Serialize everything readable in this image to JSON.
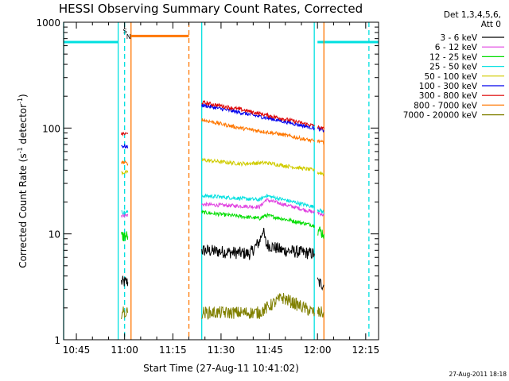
{
  "chart_data": {
    "type": "line",
    "title": "HESSI Observing Summary Count Rates, Corrected",
    "xlabel": "Start Time (27-Aug-11 10:41:02)",
    "ylabel": "Corrected Count Rate (s",
    "ylabel_sup": "-1",
    "ylabel_mid": " detector",
    "ylabel_end": ")",
    "stamp": "27-Aug-2011 18:18",
    "legend_header": [
      "Det 1,3,4,5,6,",
      "Att 0"
    ],
    "legend_position": "top-right",
    "y_scale": "log",
    "ylim": [
      1,
      1000
    ],
    "xlim": [
      "10:41:02",
      "12:19:00"
    ],
    "x_tick_labels": [
      "10:45",
      "11:00",
      "11:15",
      "11:30",
      "11:45",
      "12:00",
      "12:15"
    ],
    "y_tick_labels": [
      "1",
      "10",
      "100",
      "1000"
    ],
    "grid": false,
    "markers": [
      {
        "label": "S",
        "color": "#f5a623"
      },
      {
        "label": "N",
        "color": "#00e0e0"
      }
    ],
    "series": [
      {
        "name": "3 - 6 keV",
        "color": "#000000",
        "segments": [
          {
            "x": [
              "10:59",
              "11:01"
            ],
            "y": [
              3.5,
              3.5
            ]
          },
          {
            "x": [
              "11:24",
              "11:39",
              "11:42",
              "11:43",
              "11:44",
              "11:49",
              "11:59"
            ],
            "y": [
              7.0,
              6.5,
              8.5,
              11.0,
              8.0,
              7.0,
              6.5
            ]
          },
          {
            "x": [
              "12:00",
              "12:02"
            ],
            "y": [
              3.5,
              3.3
            ]
          }
        ]
      },
      {
        "name": "6 - 12 keV",
        "color": "#e040e0",
        "segments": [
          {
            "x": [
              "10:59",
              "11:01"
            ],
            "y": [
              15,
              15
            ]
          },
          {
            "x": [
              "11:24",
              "11:42",
              "11:44",
              "11:59"
            ],
            "y": [
              19,
              18,
              21,
              16
            ]
          },
          {
            "x": [
              "12:00",
              "12:02"
            ],
            "y": [
              16,
              15
            ]
          }
        ]
      },
      {
        "name": "12 - 25 keV",
        "color": "#00dd00",
        "segments": [
          {
            "x": [
              "10:59",
              "11:01"
            ],
            "y": [
              9.5,
              9.5
            ]
          },
          {
            "x": [
              "11:24",
              "11:42",
              "11:44",
              "11:59"
            ],
            "y": [
              16,
              14,
              15,
              12
            ]
          },
          {
            "x": [
              "12:00",
              "12:02"
            ],
            "y": [
              11,
              10
            ]
          }
        ]
      },
      {
        "name": "25 - 50 keV",
        "color": "#00e0e0",
        "segments": [
          {
            "x": [
              "10:59",
              "11:01"
            ],
            "y": [
              16,
              16
            ]
          },
          {
            "x": [
              "11:24",
              "11:42",
              "11:44",
              "11:59"
            ],
            "y": [
              23,
              21,
              23,
              18
            ]
          },
          {
            "x": [
              "12:00",
              "12:02"
            ],
            "y": [
              17,
              16
            ]
          }
        ]
      },
      {
        "name": "50 - 100 keV",
        "color": "#d0cc00",
        "segments": [
          {
            "x": [
              "10:59",
              "11:01"
            ],
            "y": [
              38,
              38
            ]
          },
          {
            "x": [
              "11:24",
              "11:36",
              "11:44",
              "11:50",
              "11:59"
            ],
            "y": [
              50,
              46,
              47,
              44,
              40
            ]
          },
          {
            "x": [
              "12:00",
              "12:02"
            ],
            "y": [
              38,
              37
            ]
          }
        ]
      },
      {
        "name": "100 - 300 keV",
        "color": "#0000ee",
        "segments": [
          {
            "x": [
              "10:59",
              "11:01"
            ],
            "y": [
              68,
              66
            ]
          },
          {
            "x": [
              "11:24",
              "11:36",
              "11:48",
              "11:59"
            ],
            "y": [
              165,
              140,
              118,
              100
            ]
          },
          {
            "x": [
              "12:00",
              "12:02"
            ],
            "y": [
              98,
              95
            ]
          }
        ]
      },
      {
        "name": "300 - 800 keV",
        "color": "#dd0000",
        "segments": [
          {
            "x": [
              "10:59",
              "11:01"
            ],
            "y": [
              88,
              88
            ]
          },
          {
            "x": [
              "11:24",
              "11:36",
              "11:48",
              "11:59"
            ],
            "y": [
              175,
              150,
              125,
              105
            ]
          },
          {
            "x": [
              "12:00",
              "12:02"
            ],
            "y": [
              102,
              98
            ]
          }
        ]
      },
      {
        "name": "800 - 7000 keV",
        "color": "#ff7700",
        "segments": [
          {
            "x": [
              "10:59",
              "11:01"
            ],
            "y": [
              48,
              46
            ]
          },
          {
            "x": [
              "11:24",
              "11:36",
              "11:48",
              "11:59"
            ],
            "y": [
              120,
              100,
              88,
              75
            ]
          },
          {
            "x": [
              "12:00",
              "12:02"
            ],
            "y": [
              76,
              72
            ]
          }
        ]
      },
      {
        "name": "7000 - 20000 keV",
        "color": "#808000",
        "segments": [
          {
            "x": [
              "10:59",
              "11:01"
            ],
            "y": [
              1.8,
              1.8
            ]
          },
          {
            "x": [
              "11:24",
              "11:42",
              "11:49",
              "11:59"
            ],
            "y": [
              1.8,
              1.8,
              2.5,
              1.8
            ]
          },
          {
            "x": [
              "12:00",
              "12:02"
            ],
            "y": [
              1.8,
              1.8
            ]
          }
        ]
      }
    ],
    "status_bands": [
      {
        "color": "#00e0e0",
        "segments": [
          {
            "x": [
              "10:41:02",
              "10:58"
            ],
            "y": 650
          },
          {
            "x": [
              "12:00",
              "12:19"
            ],
            "y": 650
          }
        ]
      },
      {
        "color": "#ff7700",
        "segments": [
          {
            "x": [
              "11:02",
              "11:20"
            ],
            "y": 740
          }
        ]
      }
    ],
    "vertical_lines": [
      {
        "x": "10:41:02",
        "color": "#00e0e0",
        "style": "solid"
      },
      {
        "x": "10:58",
        "color": "#00e0e0",
        "style": "solid"
      },
      {
        "x": "11:00",
        "color": "#00e0e0",
        "style": "dashed"
      },
      {
        "x": "11:02",
        "color": "#ff7700",
        "style": "solid"
      },
      {
        "x": "11:20",
        "color": "#ff7700",
        "style": "dashed"
      },
      {
        "x": "11:24",
        "color": "#00e0e0",
        "style": "solid"
      },
      {
        "x": "11:59",
        "color": "#00e0e0",
        "style": "solid"
      },
      {
        "x": "12:02",
        "color": "#ff7700",
        "style": "solid"
      },
      {
        "x": "12:16",
        "color": "#00e0e0",
        "style": "dashed"
      }
    ]
  }
}
